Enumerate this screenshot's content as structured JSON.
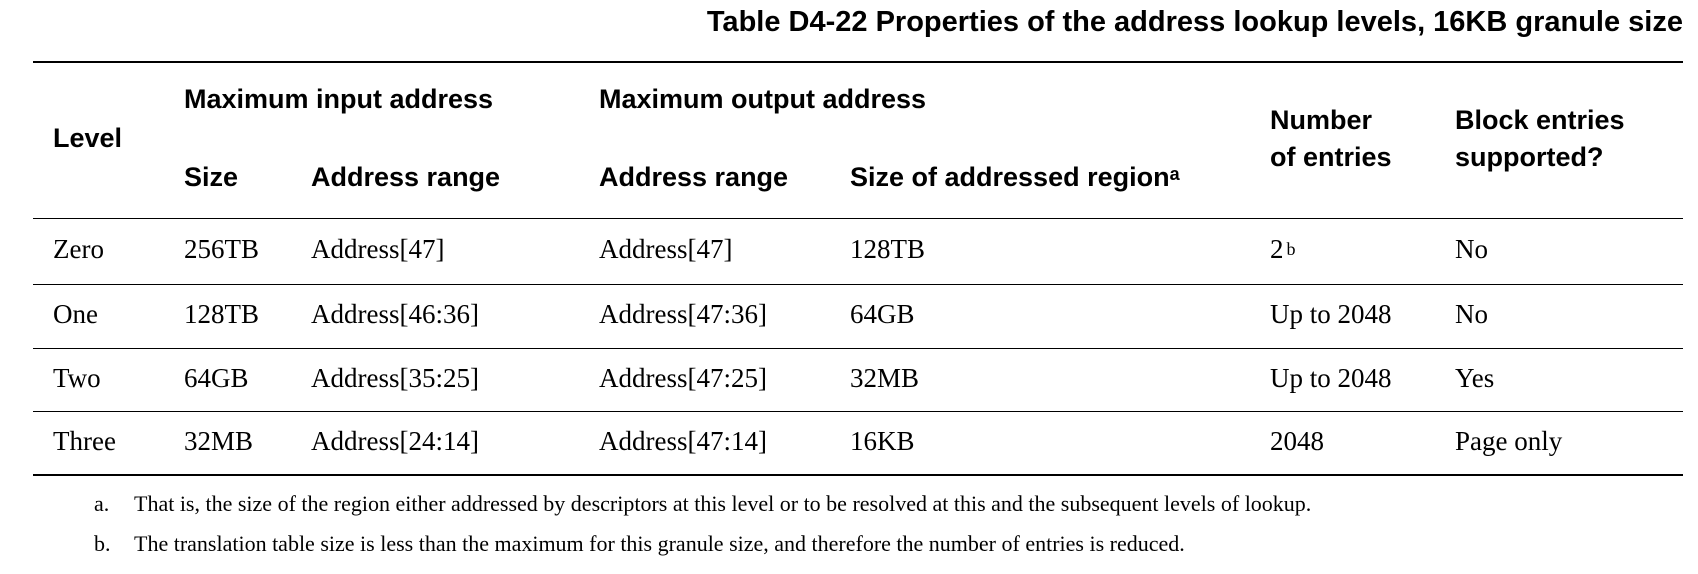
{
  "title": "Table D4-22 Properties of the address lookup levels, 16KB granule size",
  "headers": {
    "level": "Level",
    "max_input": "Maximum input address",
    "max_input_size": "Size",
    "max_input_range": "Address range",
    "max_output": "Maximum output address",
    "max_output_range": "Address range",
    "region_size": "Size of addressed region",
    "region_size_note": "a",
    "entries_line1": "Number",
    "entries_line2": "of entries",
    "block_line1": "Block entries",
    "block_line2": "supported?"
  },
  "rows": [
    {
      "level": "Zero",
      "size": "256TB",
      "in_range": "Address[47]",
      "out_range": "Address[47]",
      "region": "128TB",
      "entries": "2",
      "entries_note": "b",
      "block": "No"
    },
    {
      "level": "One",
      "size": "128TB",
      "in_range": "Address[46:36]",
      "out_range": "Address[47:36]",
      "region": "64GB",
      "entries": "Up to 2048",
      "entries_note": "",
      "block": "No"
    },
    {
      "level": "Two",
      "size": "64GB",
      "in_range": "Address[35:25]",
      "out_range": "Address[47:25]",
      "region": "32MB",
      "entries": "Up to 2048",
      "entries_note": "",
      "block": "Yes"
    },
    {
      "level": "Three",
      "size": "32MB",
      "in_range": "Address[24:14]",
      "out_range": "Address[47:14]",
      "region": "16KB",
      "entries": "2048",
      "entries_note": "",
      "block": "Page only"
    }
  ],
  "footnotes": [
    {
      "mark": "a.",
      "text": "That is, the size of the region either addressed by descriptors at this level or to be resolved at this and the subsequent levels of lookup."
    },
    {
      "mark": "b.",
      "text": "The translation table size is less than the maximum for this granule size, and therefore the number of entries is reduced."
    }
  ]
}
